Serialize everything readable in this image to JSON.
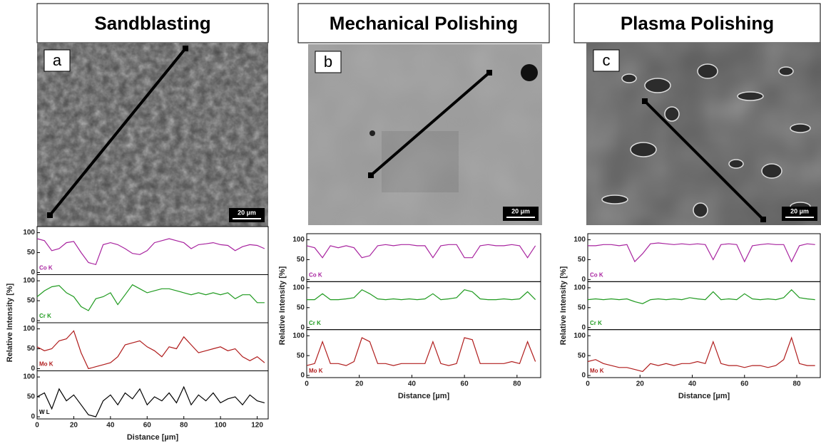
{
  "chart_data": [
    {
      "type": "line",
      "title": "Sandblasting",
      "panel_label": "a",
      "scale_bar": "20 µm",
      "ylabel": "Relative Intensity [%]",
      "xlabel": "Distance [µm]",
      "xlim": [
        0,
        126
      ],
      "xticks": [
        0,
        20,
        40,
        60,
        80,
        100,
        120
      ],
      "ylim": [
        0,
        110
      ],
      "yticks": [
        0,
        50,
        100
      ],
      "x": [
        0,
        4,
        8,
        12,
        16,
        20,
        24,
        28,
        32,
        36,
        40,
        44,
        48,
        52,
        56,
        60,
        64,
        68,
        72,
        76,
        80,
        84,
        88,
        92,
        96,
        100,
        104,
        108,
        112,
        116,
        120,
        124
      ],
      "series": [
        {
          "name": "Co K",
          "color": "#a8239f",
          "values": [
            85,
            80,
            55,
            60,
            75,
            78,
            50,
            25,
            20,
            70,
            75,
            70,
            60,
            48,
            45,
            55,
            75,
            80,
            85,
            80,
            75,
            60,
            70,
            72,
            75,
            70,
            68,
            55,
            65,
            70,
            68,
            60
          ]
        },
        {
          "name": "Cr K",
          "color": "#1f9a1f",
          "values": [
            60,
            75,
            85,
            88,
            70,
            60,
            35,
            25,
            55,
            60,
            70,
            40,
            65,
            90,
            80,
            70,
            75,
            80,
            80,
            75,
            70,
            65,
            70,
            65,
            70,
            65,
            70,
            55,
            65,
            65,
            45,
            45
          ]
        },
        {
          "name": "Mo K",
          "color": "#b01c1c",
          "values": [
            55,
            45,
            50,
            70,
            75,
            95,
            40,
            0,
            5,
            10,
            15,
            30,
            60,
            65,
            70,
            55,
            45,
            30,
            55,
            50,
            80,
            60,
            40,
            45,
            50,
            55,
            45,
            50,
            30,
            20,
            30,
            15
          ]
        },
        {
          "name": "W L",
          "color": "#000000",
          "values": [
            50,
            60,
            20,
            70,
            40,
            55,
            30,
            5,
            0,
            40,
            55,
            30,
            60,
            45,
            70,
            30,
            50,
            40,
            60,
            35,
            75,
            30,
            55,
            40,
            60,
            35,
            45,
            50,
            30,
            55,
            40,
            35
          ]
        }
      ]
    },
    {
      "type": "line",
      "title": "Mechanical Polishing",
      "panel_label": "b",
      "scale_bar": "20 µm",
      "ylabel": "Relative Intensity [%]",
      "xlabel": "Distance [µm]",
      "xlim": [
        0,
        89
      ],
      "xticks": [
        0,
        20,
        40,
        60,
        80
      ],
      "ylim": [
        0,
        110
      ],
      "yticks": [
        0,
        50,
        100
      ],
      "x": [
        0,
        3,
        6,
        9,
        12,
        15,
        18,
        21,
        24,
        27,
        30,
        33,
        36,
        39,
        42,
        45,
        48,
        51,
        54,
        57,
        60,
        63,
        66,
        69,
        72,
        75,
        78,
        81,
        84,
        87
      ],
      "series": [
        {
          "name": "Co K",
          "color": "#a8239f",
          "values": [
            85,
            80,
            55,
            85,
            80,
            85,
            80,
            55,
            60,
            85,
            88,
            85,
            88,
            88,
            85,
            85,
            55,
            85,
            88,
            88,
            55,
            55,
            85,
            88,
            85,
            85,
            88,
            85,
            55,
            85
          ]
        },
        {
          "name": "Cr K",
          "color": "#1f9a1f",
          "values": [
            70,
            70,
            85,
            70,
            70,
            72,
            75,
            95,
            85,
            72,
            70,
            72,
            70,
            72,
            70,
            72,
            85,
            70,
            72,
            75,
            95,
            90,
            72,
            70,
            70,
            72,
            70,
            72,
            90,
            70
          ]
        },
        {
          "name": "Mo K",
          "color": "#b01c1c",
          "values": [
            25,
            30,
            85,
            30,
            30,
            25,
            35,
            95,
            85,
            30,
            30,
            25,
            30,
            30,
            30,
            30,
            85,
            30,
            25,
            30,
            95,
            90,
            30,
            30,
            30,
            30,
            35,
            30,
            85,
            35
          ]
        }
      ]
    },
    {
      "type": "line",
      "title": "Plasma Polishing",
      "panel_label": "c",
      "scale_bar": "20 µm",
      "ylabel": "Relative Intensity [%]",
      "xlabel": "Distance [µm]",
      "xlim": [
        0,
        89
      ],
      "xticks": [
        0,
        20,
        40,
        60,
        80
      ],
      "ylim": [
        0,
        110
      ],
      "yticks": [
        0,
        50,
        100
      ],
      "x": [
        0,
        3,
        6,
        9,
        12,
        15,
        18,
        21,
        24,
        27,
        30,
        33,
        36,
        39,
        42,
        45,
        48,
        51,
        54,
        57,
        60,
        63,
        66,
        69,
        72,
        75,
        78,
        81,
        84,
        87
      ],
      "series": [
        {
          "name": "Co K",
          "color": "#a8239f",
          "values": [
            85,
            85,
            88,
            88,
            85,
            88,
            45,
            65,
            90,
            92,
            90,
            88,
            90,
            88,
            90,
            88,
            50,
            88,
            90,
            88,
            45,
            85,
            88,
            90,
            88,
            88,
            45,
            85,
            90,
            88
          ]
        },
        {
          "name": "Cr K",
          "color": "#1f9a1f",
          "values": [
            70,
            72,
            70,
            72,
            70,
            72,
            65,
            60,
            70,
            72,
            70,
            72,
            70,
            75,
            72,
            70,
            90,
            70,
            72,
            70,
            85,
            72,
            70,
            72,
            70,
            75,
            95,
            75,
            72,
            70
          ]
        },
        {
          "name": "Mo K",
          "color": "#b01c1c",
          "values": [
            35,
            40,
            30,
            25,
            20,
            20,
            15,
            10,
            30,
            25,
            30,
            25,
            30,
            30,
            35,
            30,
            85,
            30,
            25,
            25,
            20,
            25,
            25,
            20,
            25,
            40,
            95,
            30,
            25,
            25
          ]
        }
      ]
    }
  ]
}
